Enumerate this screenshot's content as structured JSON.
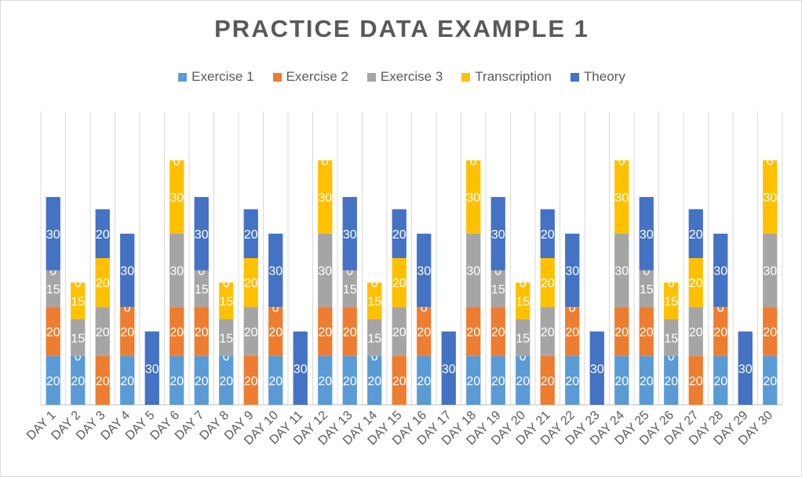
{
  "chart_data": {
    "type": "bar",
    "stacked": true,
    "title": "PRACTICE DATA EXAMPLE 1",
    "legend_position": "top",
    "categories": [
      "DAY 1",
      "DAY 2",
      "DAY 3",
      "DAY 4",
      "DAY 5",
      "DAY 6",
      "DAY 7",
      "DAY 8",
      "DAY 9",
      "DAY 10",
      "DAY 11",
      "DAY 12",
      "DAY 13",
      "DAY 14",
      "DAY 15",
      "DAY 16",
      "DAY 17",
      "DAY 18",
      "DAY 19",
      "DAY 20",
      "DAY 21",
      "DAY 22",
      "DAY 23",
      "DAY 24",
      "DAY 25",
      "DAY 26",
      "DAY 27",
      "DAY 28",
      "DAY 29",
      "DAY 30"
    ],
    "series": [
      {
        "name": "Exercise 1",
        "color": "#5B9BD5",
        "values": [
          20,
          20,
          0,
          20,
          0,
          20,
          20,
          20,
          0,
          20,
          0,
          20,
          20,
          20,
          0,
          20,
          0,
          20,
          20,
          20,
          0,
          20,
          0,
          20,
          20,
          20,
          0,
          20,
          0,
          20
        ]
      },
      {
        "name": "Exercise 2",
        "color": "#ED7D31",
        "values": [
          20,
          0,
          20,
          20,
          0,
          20,
          20,
          0,
          20,
          20,
          0,
          20,
          20,
          0,
          20,
          20,
          0,
          20,
          20,
          0,
          20,
          20,
          0,
          20,
          20,
          0,
          20,
          20,
          0,
          20
        ]
      },
      {
        "name": "Exercise 3",
        "color": "#A5A5A5",
        "values": [
          15,
          15,
          20,
          0,
          0,
          30,
          15,
          15,
          20,
          0,
          0,
          30,
          15,
          15,
          20,
          0,
          0,
          30,
          15,
          15,
          20,
          0,
          0,
          30,
          15,
          15,
          20,
          0,
          0,
          30
        ]
      },
      {
        "name": "Transcription",
        "color": "#FFC000",
        "values": [
          0,
          15,
          20,
          0,
          0,
          30,
          0,
          15,
          20,
          0,
          0,
          30,
          0,
          15,
          20,
          0,
          0,
          30,
          0,
          15,
          20,
          0,
          0,
          30,
          0,
          15,
          20,
          0,
          0,
          30
        ]
      },
      {
        "name": "Theory",
        "color": "#4472C4",
        "values": [
          30,
          0,
          20,
          30,
          30,
          0,
          30,
          0,
          20,
          30,
          30,
          0,
          30,
          0,
          20,
          30,
          30,
          0,
          30,
          0,
          20,
          30,
          30,
          0,
          30,
          0,
          20,
          30,
          30,
          0
        ]
      }
    ],
    "ylim": [
      0,
      120
    ],
    "grid": "vertical"
  }
}
